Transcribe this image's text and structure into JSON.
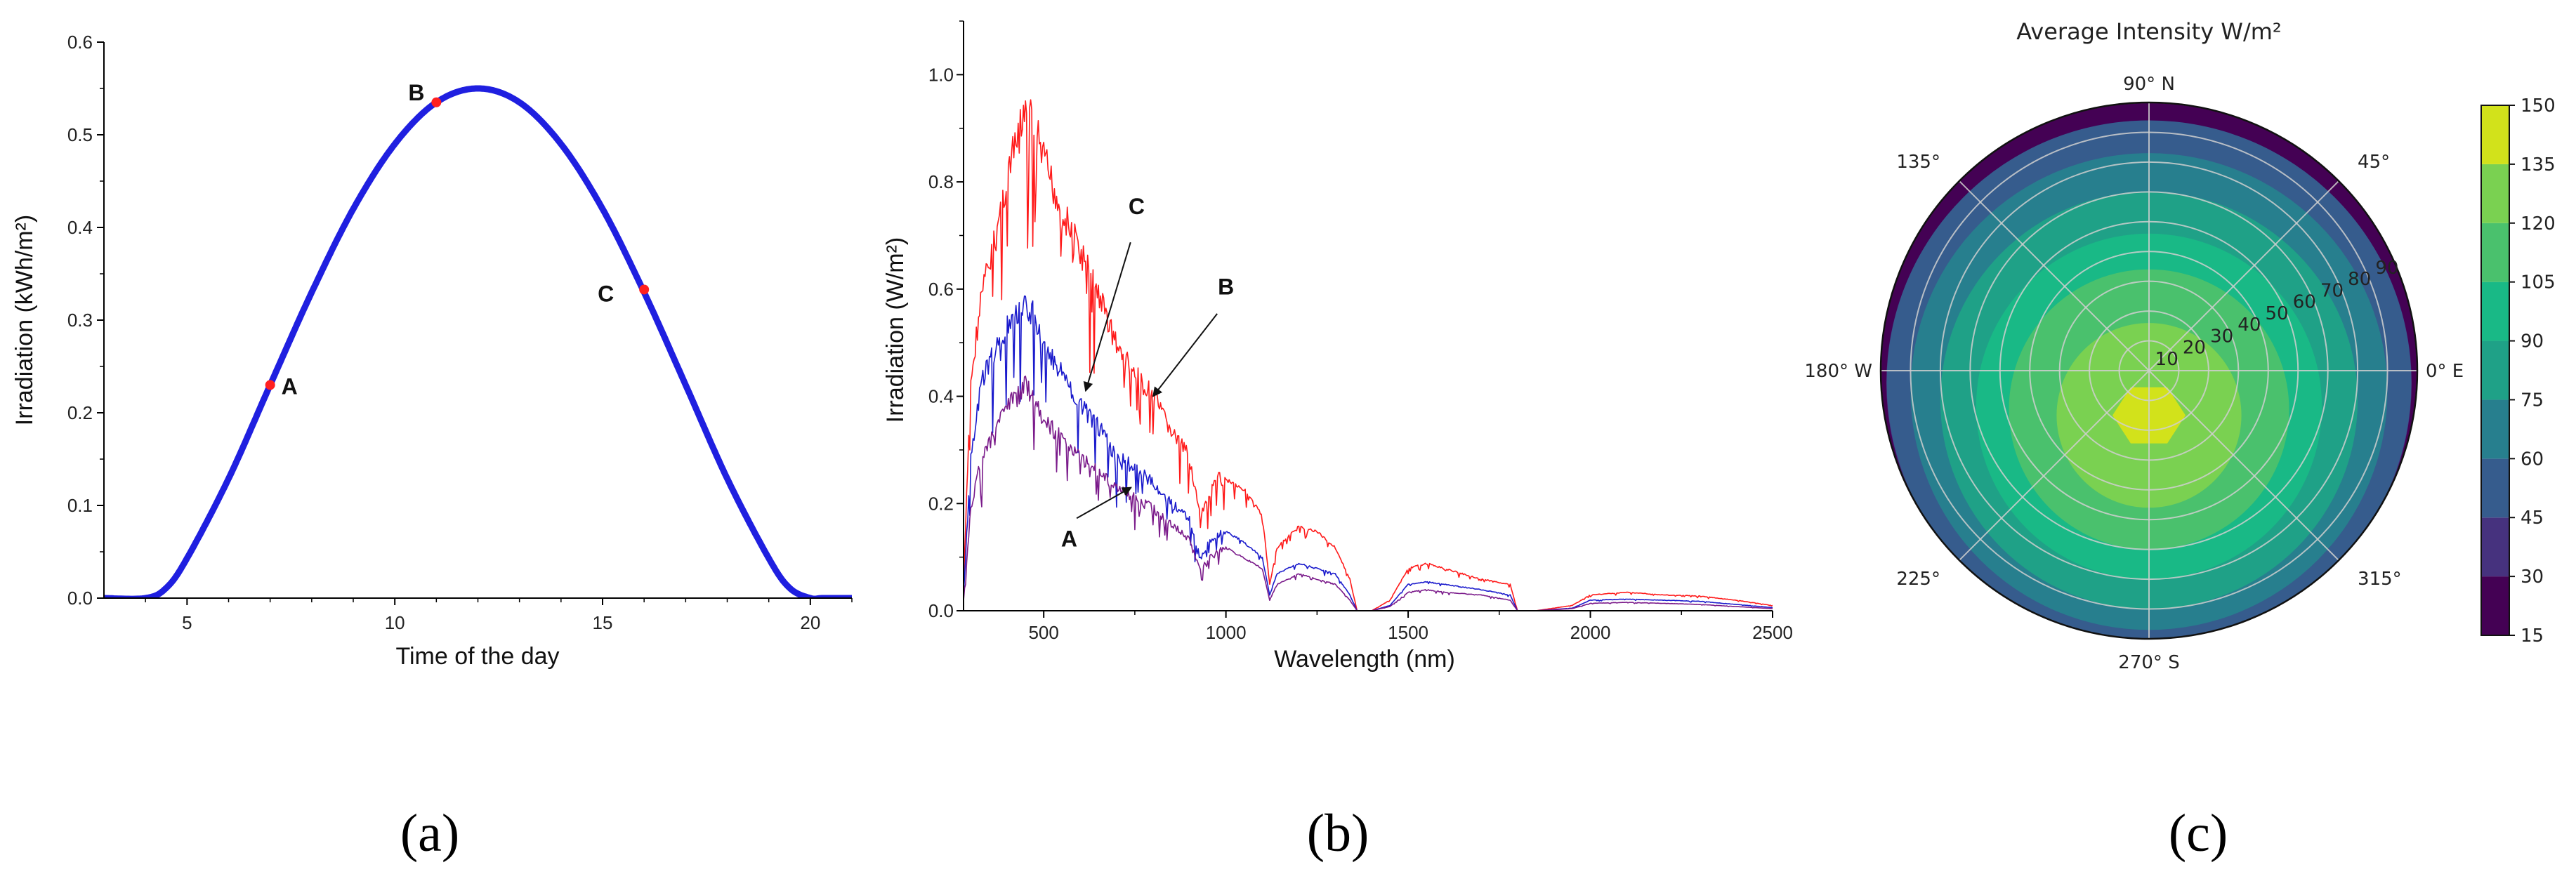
{
  "chart_data": [
    {
      "id": "a",
      "type": "line",
      "panel_label": "(a)",
      "title": "",
      "xlabel": "Time of the day",
      "ylabel": "Irradiation (kWh/m²)",
      "xlim": [
        3,
        21
      ],
      "ylim": [
        0,
        0.6
      ],
      "x_ticks": [
        5,
        10,
        15,
        20
      ],
      "y_ticks": [
        0.0,
        0.1,
        0.2,
        0.3,
        0.4,
        0.5,
        0.6
      ],
      "y_tick_labels": [
        "0.0",
        "0.1",
        "0.2",
        "0.3",
        "0.4",
        "0.5",
        "0.6"
      ],
      "series": [
        {
          "name": "Irradiation",
          "color": "#1f1fe0",
          "x": [
            3,
            4,
            4.5,
            5,
            6,
            7,
            8,
            9,
            10,
            11,
            12,
            13,
            14,
            15,
            16,
            17,
            18,
            19,
            19.5,
            20,
            20.3,
            21
          ],
          "y": [
            0,
            0,
            0.011,
            0.043,
            0.129,
            0.23,
            0.33,
            0.42,
            0.49,
            0.535,
            0.55,
            0.535,
            0.49,
            0.42,
            0.33,
            0.23,
            0.129,
            0.043,
            0.011,
            0,
            0,
            0
          ]
        }
      ],
      "points": [
        {
          "label": "A",
          "x": 7,
          "y": 0.23,
          "color": "#ff2020"
        },
        {
          "label": "B",
          "x": 11,
          "y": 0.535,
          "color": "#ff2020"
        },
        {
          "label": "C",
          "x": 16,
          "y": 0.333,
          "color": "#ff2020"
        }
      ]
    },
    {
      "id": "b",
      "type": "line",
      "panel_label": "(b)",
      "title": "",
      "xlabel": "Wavelength (nm)",
      "ylabel": "Irradiation (W/m²)",
      "xlim": [
        280,
        2500
      ],
      "ylim": [
        0,
        1.1
      ],
      "x_ticks": [
        500,
        1000,
        1500,
        2000,
        2500
      ],
      "y_ticks": [
        0.0,
        0.2,
        0.4,
        0.6,
        0.8,
        1.0
      ],
      "y_tick_labels": [
        "0.0",
        "0.2",
        "0.4",
        "0.6",
        "0.8",
        "1.0"
      ],
      "series": [
        {
          "name": "B",
          "color": "#ff1a1a",
          "x": [
            280,
            300,
            330,
            360,
            400,
            430,
            450,
            470,
            500,
            550,
            600,
            650,
            700,
            750,
            800,
            850,
            900,
            930,
            950,
            980,
            1000,
            1050,
            1100,
            1120,
            1140,
            1200,
            1250,
            1300,
            1340,
            1360,
            1400,
            1450,
            1500,
            1550,
            1600,
            1700,
            1780,
            1800,
            1850,
            1950,
            2000,
            2100,
            2200,
            2300,
            2400,
            2500
          ],
          "y": [
            0.05,
            0.45,
            0.62,
            0.7,
            0.85,
            0.92,
            0.98,
            0.95,
            0.88,
            0.78,
            0.7,
            0.62,
            0.52,
            0.46,
            0.42,
            0.35,
            0.3,
            0.18,
            0.22,
            0.26,
            0.25,
            0.23,
            0.18,
            0.05,
            0.12,
            0.16,
            0.15,
            0.12,
            0.06,
            0.0,
            0.0,
            0.02,
            0.08,
            0.09,
            0.08,
            0.06,
            0.05,
            0.0,
            0.0,
            0.01,
            0.03,
            0.035,
            0.03,
            0.028,
            0.02,
            0.01
          ]
        },
        {
          "name": "C",
          "color": "#1a1acc",
          "x": [
            280,
            300,
            330,
            360,
            400,
            430,
            450,
            470,
            500,
            550,
            600,
            650,
            700,
            750,
            800,
            850,
            900,
            930,
            950,
            980,
            1000,
            1050,
            1100,
            1120,
            1140,
            1200,
            1250,
            1300,
            1340,
            1360,
            1400,
            1450,
            1500,
            1550,
            1600,
            1700,
            1780,
            1800,
            1850,
            1950,
            2000,
            2100,
            2200,
            2300,
            2400,
            2500
          ],
          "y": [
            0.03,
            0.3,
            0.45,
            0.5,
            0.55,
            0.58,
            0.6,
            0.58,
            0.52,
            0.46,
            0.4,
            0.36,
            0.3,
            0.28,
            0.25,
            0.21,
            0.18,
            0.1,
            0.13,
            0.15,
            0.15,
            0.13,
            0.1,
            0.03,
            0.07,
            0.09,
            0.08,
            0.07,
            0.03,
            0.0,
            0.0,
            0.01,
            0.05,
            0.055,
            0.05,
            0.04,
            0.03,
            0.0,
            0.0,
            0.005,
            0.02,
            0.022,
            0.02,
            0.018,
            0.012,
            0.006
          ]
        },
        {
          "name": "A",
          "color": "#7a1a8a",
          "x": [
            280,
            300,
            330,
            360,
            400,
            430,
            450,
            470,
            500,
            550,
            600,
            650,
            700,
            750,
            800,
            850,
            900,
            930,
            950,
            980,
            1000,
            1050,
            1100,
            1120,
            1140,
            1200,
            1250,
            1300,
            1340,
            1360,
            1400,
            1450,
            1500,
            1550,
            1600,
            1700,
            1780,
            1800,
            1850,
            1950,
            2000,
            2100,
            2200,
            2300,
            2400,
            2500
          ],
          "y": [
            0.02,
            0.2,
            0.3,
            0.34,
            0.4,
            0.42,
            0.44,
            0.42,
            0.37,
            0.34,
            0.3,
            0.27,
            0.24,
            0.22,
            0.2,
            0.17,
            0.14,
            0.08,
            0.1,
            0.12,
            0.12,
            0.1,
            0.08,
            0.02,
            0.05,
            0.07,
            0.06,
            0.05,
            0.02,
            0.0,
            0.0,
            0.008,
            0.035,
            0.04,
            0.035,
            0.03,
            0.02,
            0.0,
            0.0,
            0.004,
            0.014,
            0.016,
            0.014,
            0.012,
            0.008,
            0.004
          ]
        }
      ],
      "annotations": [
        {
          "label": "A",
          "text_x": 570,
          "text_y": 0.12,
          "arrow_x": 740,
          "arrow_y": 0.23
        },
        {
          "label": "B",
          "text_x": 1000,
          "text_y": 0.59,
          "arrow_x": 800,
          "arrow_y": 0.4
        },
        {
          "label": "C",
          "text_x": 755,
          "text_y": 0.74,
          "arrow_x": 615,
          "arrow_y": 0.41
        }
      ]
    },
    {
      "id": "c",
      "type": "heatmap",
      "subtype": "polar-contour",
      "panel_label": "(c)",
      "title": "Average Intensity W/m²",
      "angle_labels": [
        {
          "deg": 0,
          "text": "0° E"
        },
        {
          "deg": 45,
          "text": "45°"
        },
        {
          "deg": 90,
          "text": "90° N"
        },
        {
          "deg": 135,
          "text": "135°"
        },
        {
          "deg": 180,
          "text": "180° W"
        },
        {
          "deg": 225,
          "text": "225°"
        },
        {
          "deg": 270,
          "text": "270° S"
        },
        {
          "deg": 315,
          "text": "315°"
        }
      ],
      "radial_ticks": [
        10,
        20,
        30,
        40,
        50,
        60,
        70,
        80,
        90
      ],
      "radial_max": 90,
      "colorbar": {
        "ticks": [
          15,
          30,
          45,
          60,
          75,
          90,
          105,
          120,
          135,
          150
        ],
        "levels": [
          {
            "min": 15,
            "max": 30,
            "color": "#440154"
          },
          {
            "min": 30,
            "max": 45,
            "color": "#46327e"
          },
          {
            "min": 45,
            "max": 60,
            "color": "#365c8d"
          },
          {
            "min": 60,
            "max": 75,
            "color": "#277f8e"
          },
          {
            "min": 75,
            "max": 90,
            "color": "#1fa187"
          },
          {
            "min": 90,
            "max": 105,
            "color": "#19b986"
          },
          {
            "min": 105,
            "max": 120,
            "color": "#4ac16d"
          },
          {
            "min": 120,
            "max": 135,
            "color": "#7ad151"
          },
          {
            "min": 135,
            "max": 150,
            "color": "#d2e21b"
          }
        ]
      },
      "peak": {
        "azimuth_deg": 270,
        "zenith": 15,
        "value": 142
      },
      "contours": [
        {
          "value": 142,
          "zenith_center": 15,
          "azimuth_center": 270,
          "radius": 4
        },
        {
          "value": 128,
          "zenith_center": 15,
          "azimuth_center": 270,
          "radius": 31
        },
        {
          "value": 112,
          "zenith_center": 13,
          "azimuth_center": 270,
          "radius": 47
        },
        {
          "value": 98,
          "zenith_center": 12,
          "azimuth_center": 270,
          "radius": 58
        },
        {
          "value": 82,
          "zenith_center": 10,
          "azimuth_center": 270,
          "radius": 70
        },
        {
          "value": 68,
          "zenith_center": 7,
          "azimuth_center": 270,
          "radius": 80
        },
        {
          "value": 52,
          "zenith_center": 4,
          "azimuth_center": 270,
          "radius": 88
        }
      ]
    }
  ]
}
